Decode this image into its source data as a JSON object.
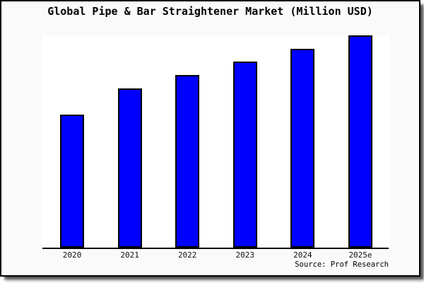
{
  "chart_data": {
    "type": "bar",
    "title": "Global Pipe & Bar Straightener Market (Million USD)",
    "categories": [
      "2020",
      "2021",
      "2022",
      "2023",
      "2024",
      "2025e"
    ],
    "values": [
      62.7,
      75.0,
      81.3,
      87.7,
      93.7,
      100.0
    ],
    "xlabel": "",
    "ylabel": "",
    "ylim": [
      0,
      100
    ],
    "grid": false,
    "legend": false,
    "source": "Source: Prof Research"
  },
  "colors": {
    "bar": "#0000ff",
    "bar_border": "#000000",
    "figure_background": "#fafafa",
    "plot_background": "#ffffff",
    "axis": "#000000",
    "frame_border": "#000000",
    "text": "#000000"
  }
}
